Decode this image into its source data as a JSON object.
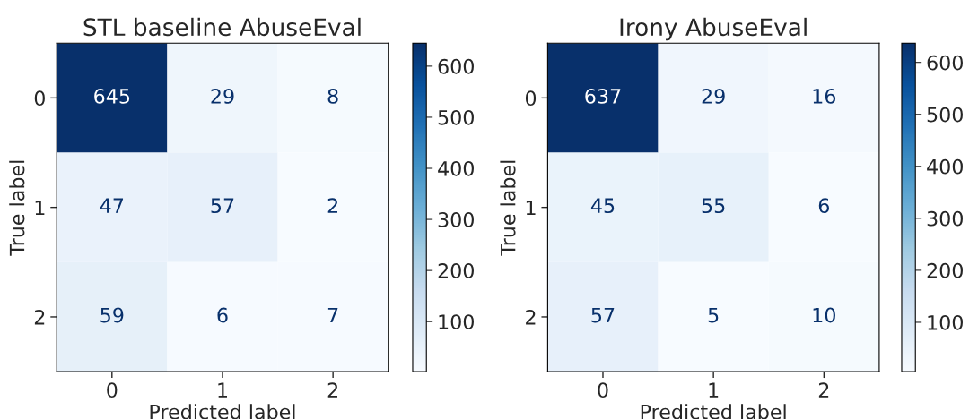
{
  "chart_data": [
    {
      "type": "heatmap",
      "title": "STL baseline AbuseEval",
      "xlabel": "Predicted label",
      "ylabel": "True label",
      "categories": [
        "0",
        "1",
        "2"
      ],
      "y_categories": [
        "0",
        "1",
        "2"
      ],
      "cells": [
        [
          645,
          29,
          8
        ],
        [
          47,
          57,
          2
        ],
        [
          59,
          6,
          7
        ]
      ],
      "clim": [
        2,
        645
      ],
      "cticks": [
        100,
        200,
        300,
        400,
        500,
        600
      ],
      "data_labels": true
    },
    {
      "type": "heatmap",
      "title": "Irony AbuseEval",
      "xlabel": "Predicted label",
      "ylabel": "True label",
      "categories": [
        "0",
        "1",
        "2"
      ],
      "y_categories": [
        "0",
        "1",
        "2"
      ],
      "cells": [
        [
          637,
          29,
          16
        ],
        [
          45,
          55,
          6
        ],
        [
          57,
          5,
          10
        ]
      ],
      "clim": [
        5,
        637
      ],
      "cticks": [
        100,
        200,
        300,
        400,
        500,
        600
      ],
      "data_labels": true
    }
  ]
}
